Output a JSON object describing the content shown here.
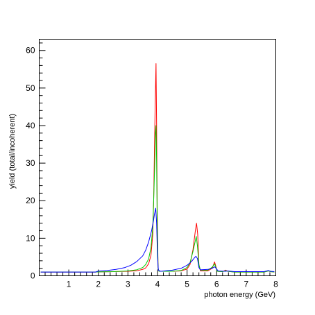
{
  "chart_data": {
    "type": "line",
    "xlabel": "photon energy (GeV)",
    "ylabel": "yield (total/incoherent)",
    "xlim": [
      0,
      8
    ],
    "ylim": [
      0,
      63
    ],
    "x_ticks": [
      1,
      2,
      3,
      4,
      5,
      6,
      7,
      8
    ],
    "y_ticks": [
      0,
      10,
      20,
      30,
      40,
      50,
      60
    ],
    "grid": false,
    "series": [
      {
        "color": "#ff0000",
        "points": [
          [
            0.05,
            1.0
          ],
          [
            1.9,
            1.0
          ],
          [
            2.0,
            1.05
          ],
          [
            2.5,
            1.1
          ],
          [
            3.0,
            1.2
          ],
          [
            3.3,
            1.35
          ],
          [
            3.5,
            1.7
          ],
          [
            3.6,
            2.1
          ],
          [
            3.7,
            3.2
          ],
          [
            3.78,
            5.5
          ],
          [
            3.84,
            11.0
          ],
          [
            3.87,
            20.0
          ],
          [
            3.89,
            30.0
          ],
          [
            3.92,
            45.0
          ],
          [
            3.95,
            56.5
          ],
          [
            3.97,
            40.0
          ],
          [
            3.99,
            18.0
          ],
          [
            4.02,
            2.0
          ],
          [
            4.05,
            1.2
          ],
          [
            4.5,
            1.2
          ],
          [
            4.8,
            1.3
          ],
          [
            5.0,
            1.8
          ],
          [
            5.1,
            3.0
          ],
          [
            5.2,
            7.0
          ],
          [
            5.28,
            12.0
          ],
          [
            5.32,
            14.0
          ],
          [
            5.36,
            11.0
          ],
          [
            5.4,
            3.0
          ],
          [
            5.45,
            1.3
          ],
          [
            5.7,
            1.3
          ],
          [
            5.85,
            2.0
          ],
          [
            5.93,
            3.7
          ],
          [
            5.97,
            2.6
          ],
          [
            6.02,
            1.2
          ],
          [
            6.2,
            1.1
          ],
          [
            6.3,
            1.5
          ],
          [
            6.38,
            1.2
          ],
          [
            6.6,
            1.0
          ],
          [
            7.6,
            1.0
          ],
          [
            7.75,
            1.3
          ],
          [
            7.82,
            1.1
          ],
          [
            7.95,
            1.0
          ]
        ]
      },
      {
        "color": "#00cc00",
        "points": [
          [
            0.05,
            1.0
          ],
          [
            1.9,
            1.0
          ],
          [
            2.0,
            1.05
          ],
          [
            2.5,
            1.1
          ],
          [
            3.0,
            1.3
          ],
          [
            3.3,
            1.6
          ],
          [
            3.5,
            2.2
          ],
          [
            3.6,
            3.0
          ],
          [
            3.7,
            4.5
          ],
          [
            3.78,
            7.5
          ],
          [
            3.84,
            13.0
          ],
          [
            3.87,
            20.0
          ],
          [
            3.9,
            28.0
          ],
          [
            3.93,
            38.0
          ],
          [
            3.95,
            40.0
          ],
          [
            3.97,
            30.0
          ],
          [
            3.99,
            14.0
          ],
          [
            4.02,
            2.0
          ],
          [
            4.05,
            1.2
          ],
          [
            4.5,
            1.2
          ],
          [
            4.8,
            1.4
          ],
          [
            5.0,
            2.2
          ],
          [
            5.1,
            3.5
          ],
          [
            5.2,
            6.5
          ],
          [
            5.27,
            9.0
          ],
          [
            5.31,
            10.5
          ],
          [
            5.35,
            8.0
          ],
          [
            5.4,
            3.0
          ],
          [
            5.45,
            1.5
          ],
          [
            5.7,
            1.5
          ],
          [
            5.85,
            2.3
          ],
          [
            5.93,
            3.2
          ],
          [
            5.97,
            2.3
          ],
          [
            6.02,
            1.2
          ],
          [
            6.2,
            1.1
          ],
          [
            6.3,
            1.4
          ],
          [
            6.38,
            1.2
          ],
          [
            6.6,
            1.0
          ],
          [
            7.6,
            1.0
          ],
          [
            7.75,
            1.3
          ],
          [
            7.82,
            1.1
          ],
          [
            7.95,
            1.0
          ]
        ]
      },
      {
        "color": "#0000ff",
        "points": [
          [
            0.05,
            1.0
          ],
          [
            1.9,
            1.0
          ],
          [
            2.0,
            1.25
          ],
          [
            2.3,
            1.4
          ],
          [
            2.6,
            1.7
          ],
          [
            2.9,
            2.2
          ],
          [
            3.1,
            2.8
          ],
          [
            3.3,
            3.8
          ],
          [
            3.5,
            5.3
          ],
          [
            3.6,
            6.8
          ],
          [
            3.7,
            9.0
          ],
          [
            3.8,
            12.0
          ],
          [
            3.86,
            14.5
          ],
          [
            3.9,
            16.5
          ],
          [
            3.94,
            18.0
          ],
          [
            3.97,
            14.0
          ],
          [
            4.0,
            5.0
          ],
          [
            4.03,
            1.5
          ],
          [
            4.1,
            1.2
          ],
          [
            4.5,
            1.5
          ],
          [
            4.8,
            2.0
          ],
          [
            5.0,
            2.8
          ],
          [
            5.15,
            3.8
          ],
          [
            5.25,
            4.8
          ],
          [
            5.3,
            5.2
          ],
          [
            5.35,
            4.6
          ],
          [
            5.4,
            2.2
          ],
          [
            5.45,
            1.6
          ],
          [
            5.7,
            1.7
          ],
          [
            5.85,
            2.0
          ],
          [
            5.93,
            2.4
          ],
          [
            5.98,
            2.0
          ],
          [
            6.05,
            1.3
          ],
          [
            6.3,
            1.2
          ],
          [
            6.38,
            1.3
          ],
          [
            6.6,
            1.1
          ],
          [
            7.6,
            1.1
          ],
          [
            7.75,
            1.4
          ],
          [
            7.82,
            1.2
          ],
          [
            7.95,
            1.1
          ]
        ]
      }
    ]
  }
}
